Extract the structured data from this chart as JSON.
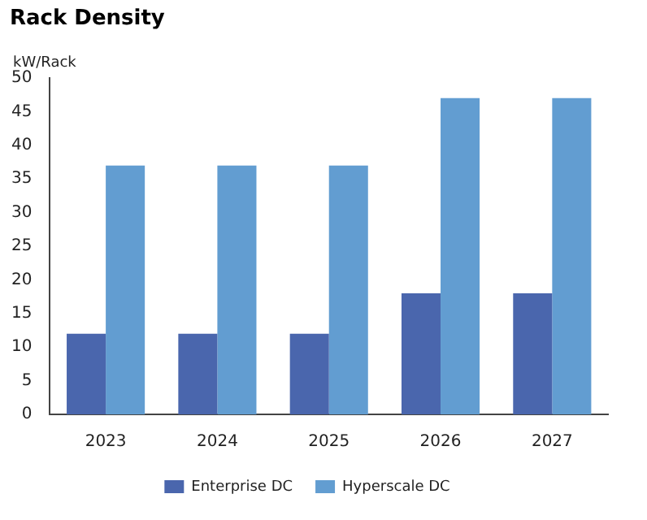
{
  "chart_data": {
    "type": "bar",
    "title": "Rack Density",
    "ylabel": "kW/Rack",
    "categories": [
      "2023",
      "2024",
      "2025",
      "2026",
      "2027"
    ],
    "series": [
      {
        "name": "Enterprise DC",
        "color": "#4a66ad",
        "values": [
          12,
          12,
          12,
          18,
          18
        ]
      },
      {
        "name": "Hyperscale DC",
        "color": "#629dd1",
        "values": [
          37,
          37,
          37,
          47,
          47
        ]
      }
    ],
    "ylim": [
      0,
      50
    ],
    "yticks": [
      0,
      5,
      10,
      15,
      20,
      25,
      30,
      35,
      40,
      45,
      50
    ],
    "grid": false,
    "legend": "bottom"
  }
}
